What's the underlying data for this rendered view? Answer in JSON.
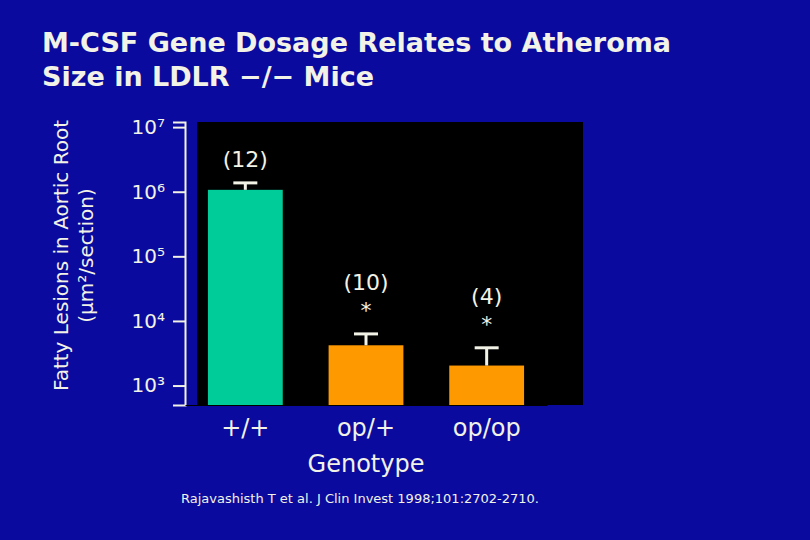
{
  "chart_data": {
    "type": "bar",
    "title": [
      "M-CSF Gene Dosage Relates to Atheroma",
      "Size in LDLR −/− Mice"
    ],
    "x_label": "Genotype",
    "y_label": [
      "Fatty Lesions in Aortic Root",
      "(μm²/section)"
    ],
    "categories": [
      "+/+",
      "op/+",
      "op/op"
    ],
    "values": [
      1070000,
      4200,
      2040
    ],
    "errors": [
      300000,
      2100,
      1800
    ],
    "colors": [
      "#00cc99",
      "#ff9900",
      "#ff9900"
    ],
    "log": "y",
    "ylim": [
      500,
      12000000
    ],
    "yticks": [
      {
        "value": 1000,
        "label": "10³"
      },
      {
        "value": 10000,
        "label": "10⁴"
      },
      {
        "value": 100000,
        "label": "10⁵"
      },
      {
        "value": 1000000,
        "label": "10⁶"
      },
      {
        "value": 10000000,
        "label": "10⁷"
      }
    ],
    "annotations": [
      {
        "category": "+/+",
        "text": "(12)"
      },
      {
        "category": "op/+",
        "text": "(10)"
      },
      {
        "category": "op/+",
        "text": "*"
      },
      {
        "category": "op/op",
        "text": "(4)"
      },
      {
        "category": "op/op",
        "text": "*"
      }
    ],
    "source": "Rajavashisth T et al. J Clin Invest 1998;101:2702-2710."
  }
}
